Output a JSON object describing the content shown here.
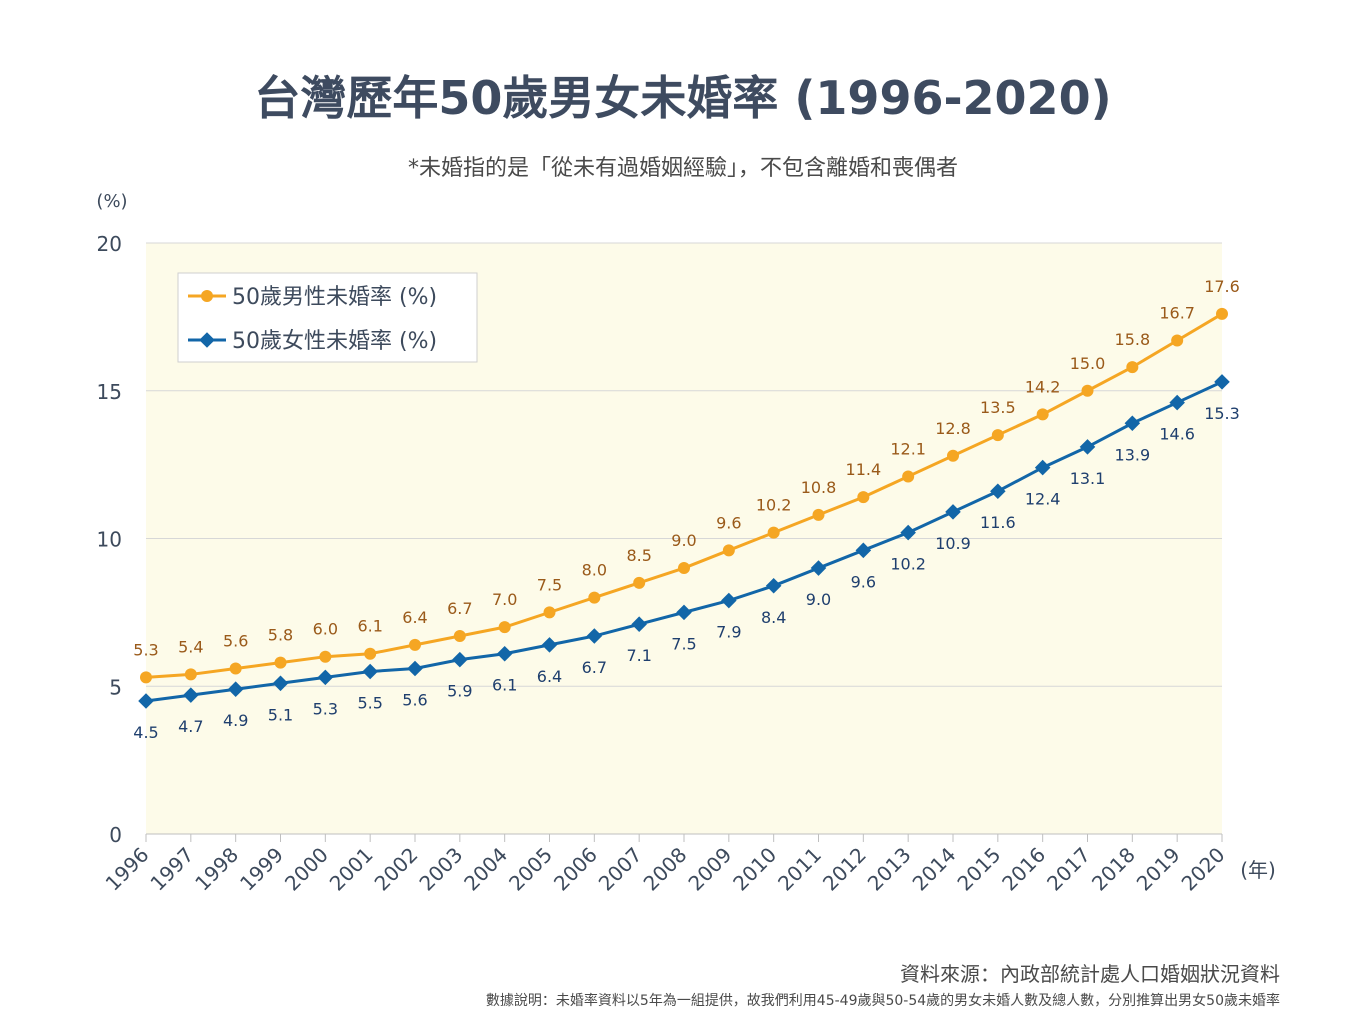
{
  "title": "台灣歷年50歲男女未婚率 (1996-2020)",
  "subtitle": "*未婚指的是「從未有過婚姻經驗」，不包含離婚和喪偶者",
  "source": "資料來源：內政部統計處人口婚姻狀況資料",
  "note": "數據說明：未婚率資料以5年為一組提供，故我們利用45-49歲與50-54歲的男女未婚人數及總人數，分別推算出男女50歲未婚率",
  "colors": {
    "male": "#f5a623",
    "female": "#1266a8",
    "male_label": "#9a5a1a",
    "female_label": "#1f3f6e",
    "plot_bg": "#fdfbe9"
  },
  "chart_data": {
    "type": "line",
    "ylabel": "(%)",
    "xlabel": "(年)",
    "ylim": [
      0,
      20
    ],
    "yticks": [
      0,
      5,
      10,
      15,
      20
    ],
    "grid": true,
    "legend_position": "top-left",
    "x": [
      "1996",
      "1997",
      "1998",
      "1999",
      "2000",
      "2001",
      "2002",
      "2003",
      "2004",
      "2005",
      "2006",
      "2007",
      "2008",
      "2009",
      "2010",
      "2011",
      "2012",
      "2013",
      "2014",
      "2015",
      "2016",
      "2017",
      "2018",
      "2019",
      "2020"
    ],
    "series": [
      {
        "name": "50歲男性未婚率 (%)",
        "values": [
          5.3,
          5.4,
          5.6,
          5.8,
          6.0,
          6.1,
          6.4,
          6.7,
          7.0,
          7.5,
          8.0,
          8.5,
          9.0,
          9.6,
          10.2,
          10.8,
          11.4,
          12.1,
          12.8,
          13.5,
          14.2,
          15.0,
          15.8,
          16.7,
          17.6
        ]
      },
      {
        "name": "50歲女性未婚率 (%)",
        "values": [
          4.5,
          4.7,
          4.9,
          5.1,
          5.3,
          5.5,
          5.6,
          5.9,
          6.1,
          6.4,
          6.7,
          7.1,
          7.5,
          7.9,
          8.4,
          9.0,
          9.6,
          10.2,
          10.9,
          11.6,
          12.4,
          13.1,
          13.9,
          14.6,
          15.3
        ]
      }
    ]
  }
}
